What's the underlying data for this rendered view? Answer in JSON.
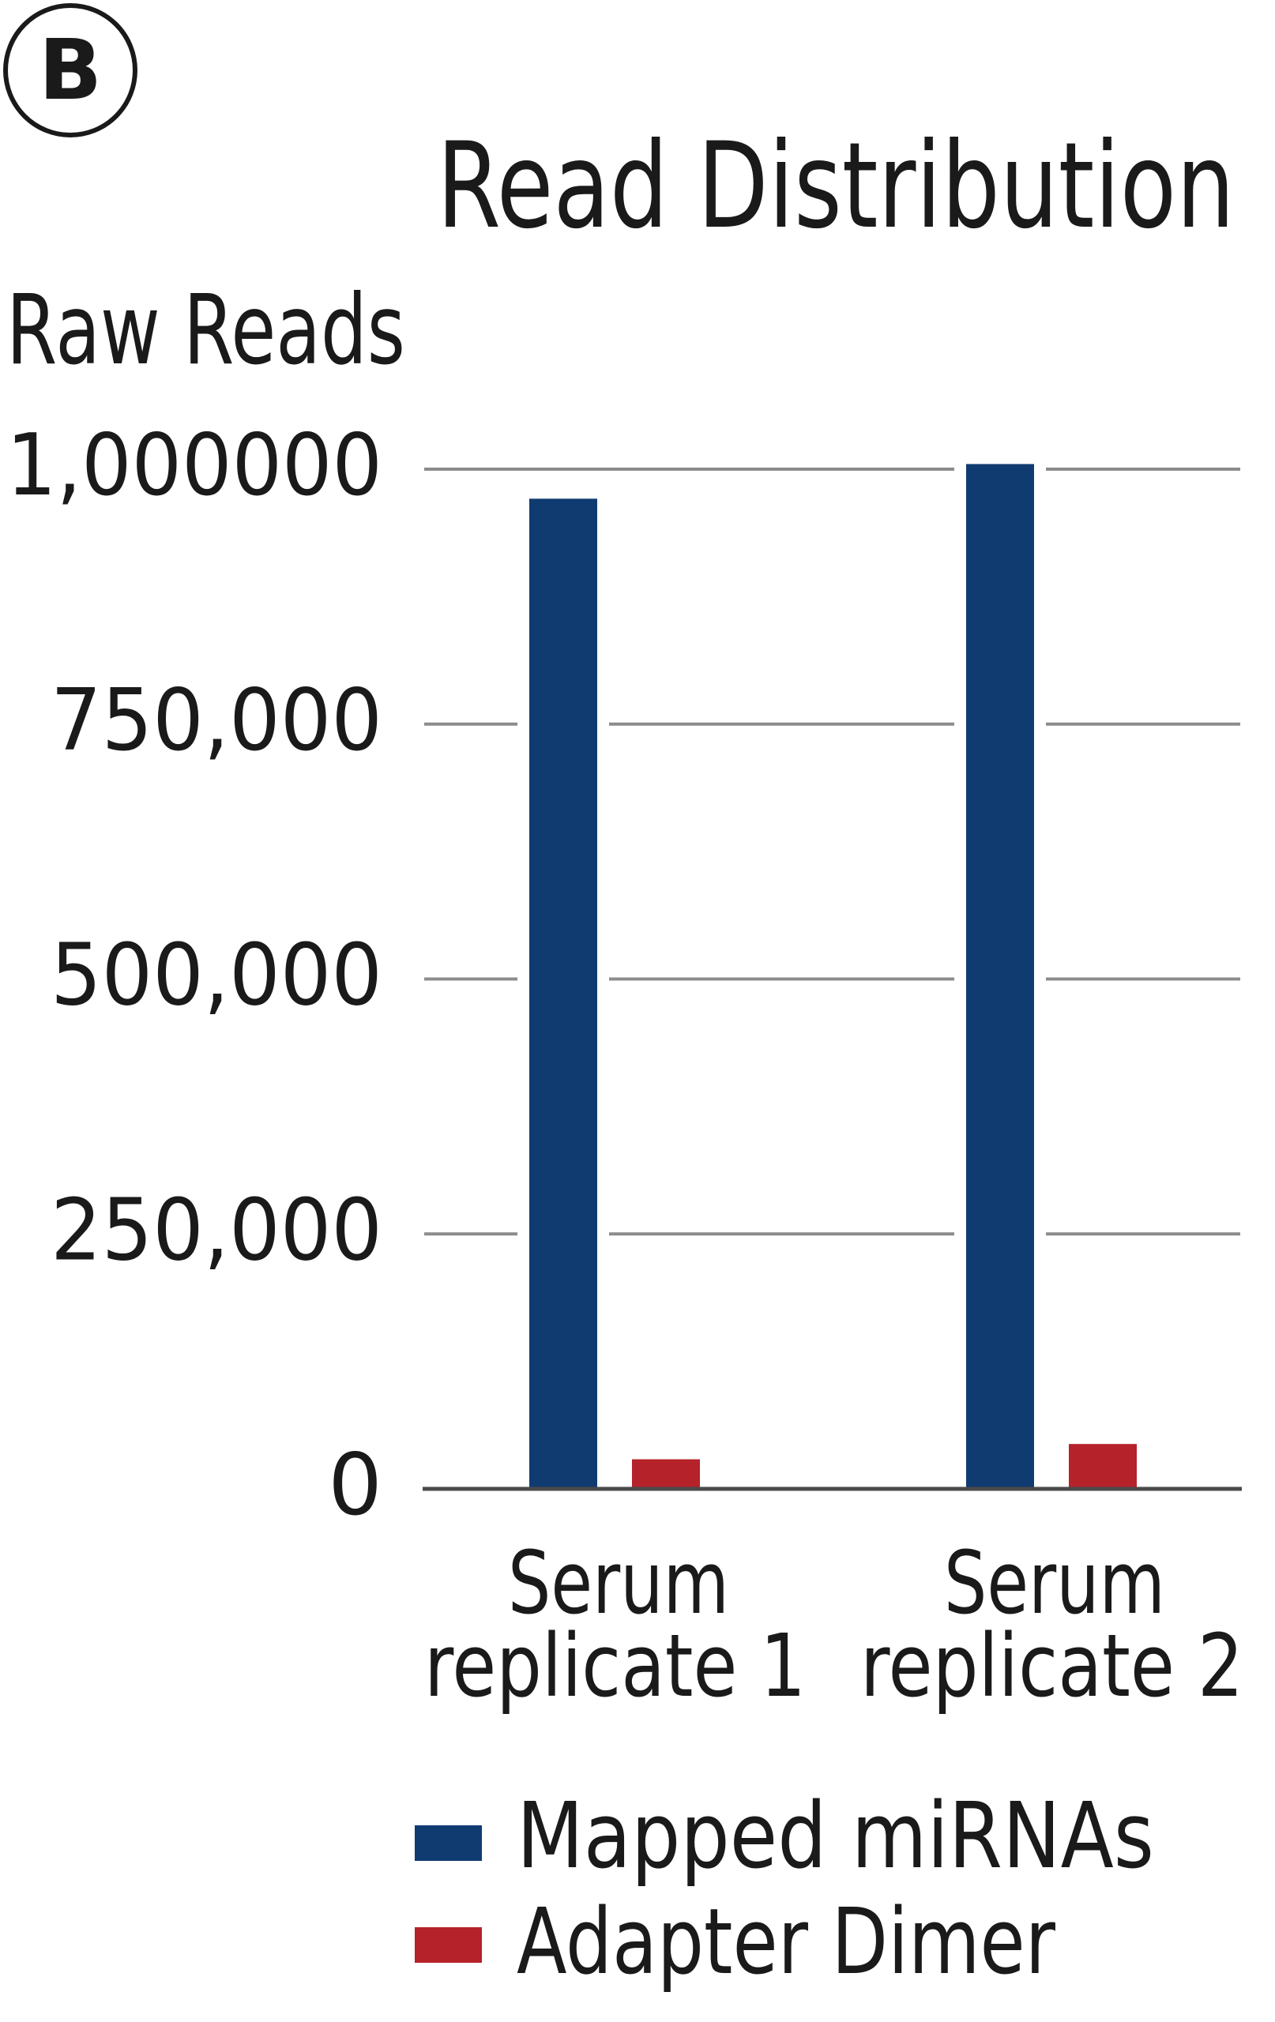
{
  "panel_label": "B",
  "chart_data": {
    "type": "bar",
    "title": "Read Distribution",
    "ylabel": "Raw Reads",
    "xlabel": "",
    "ylim": [
      0,
      1000000
    ],
    "yticks": [
      0,
      250000,
      500000,
      750000,
      1000000
    ],
    "ytick_labels": [
      "0",
      "250,000",
      "500,000",
      "750,000",
      "1,000000"
    ],
    "grid": true,
    "categories": [
      {
        "line1": "Serum",
        "line2": "replicate 1"
      },
      {
        "line1": "Serum",
        "line2": "replicate 2"
      }
    ],
    "series": [
      {
        "name": "Mapped miRNAs",
        "color": "#0f3b70",
        "values": [
          971000,
          1005000
        ]
      },
      {
        "name": "Adapter Dimer",
        "color": "#b5222a",
        "values": [
          29000,
          44000
        ]
      }
    ],
    "legend_position": "bottom"
  }
}
